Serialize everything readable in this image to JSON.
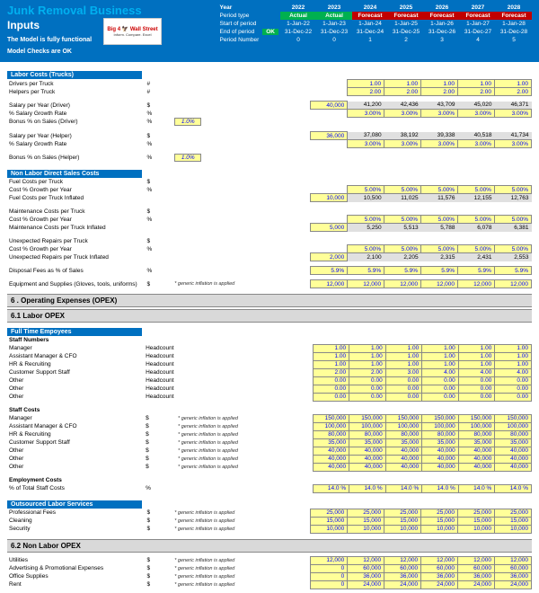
{
  "header": {
    "title": "Junk Removal Business",
    "inputs": "Inputs",
    "note1": "The Model is fully functional",
    "note2": "Model Checks are OK",
    "logo": "Big 4 🦅 Wall Street",
    "logo_sub": "Inform. Compare. Excel",
    "ok": "OK",
    "period_labels": [
      "Year",
      "Period type",
      "Start of period",
      "End of period",
      "Period Number"
    ],
    "years": [
      "2022",
      "2023",
      "2024",
      "2025",
      "2026",
      "2027",
      "2028"
    ],
    "ptypes": [
      "Actual",
      "Actual",
      "Forecast",
      "Forecast",
      "Forecast",
      "Forecast",
      "Forecast"
    ],
    "starts": [
      "1-Jan-22",
      "1-Jan-23",
      "1-Jan-24",
      "1-Jan-25",
      "1-Jan-26",
      "1-Jan-27",
      "1-Jan-28"
    ],
    "ends": [
      "31-Dec-22",
      "31-Dec-23",
      "31-Dec-24",
      "31-Dec-25",
      "31-Dec-26",
      "31-Dec-27",
      "31-Dec-28"
    ],
    "pnums": [
      "0",
      "0",
      "1",
      "2",
      "3",
      "4",
      "5"
    ]
  },
  "s1": {
    "title": "Labor Costs (Trucks)"
  },
  "r": {
    "drivers": {
      "l": "Drivers per Truck",
      "u": "#",
      "v": [
        "1.00",
        "1.00",
        "1.00",
        "1.00",
        "1.00"
      ]
    },
    "helpers": {
      "l": "Helpers per Truck",
      "u": "#",
      "v": [
        "2.00",
        "2.00",
        "2.00",
        "2.00",
        "2.00"
      ]
    },
    "salDriver": {
      "l": "Salary per Year (Driver)",
      "u": "$",
      "base": "40,000",
      "v": [
        "41,200",
        "42,436",
        "43,709",
        "45,020",
        "46,371"
      ]
    },
    "salDrGrow": {
      "l": "% Salary Growth Rate",
      "u": "%",
      "v": [
        "3.00%",
        "3.00%",
        "3.00%",
        "3.00%",
        "3.00%"
      ]
    },
    "bonusDr": {
      "l": "Bonus % on Sales (Driver)",
      "u": "%",
      "pct": "1.0%"
    },
    "salHelper": {
      "l": "Salary per Year (Helper)",
      "u": "$",
      "base": "36,000",
      "v": [
        "37,080",
        "38,192",
        "39,338",
        "40,518",
        "41,734"
      ]
    },
    "salHeGrow": {
      "l": "% Salary Growth Rate",
      "u": "%",
      "v": [
        "3.00%",
        "3.00%",
        "3.00%",
        "3.00%",
        "3.00%"
      ]
    },
    "bonusHe": {
      "l": "Bonus % on Sales (Helper)",
      "u": "%",
      "pct": "1.0%"
    }
  },
  "s2": {
    "title": "Non Labor Direct Sales Costs"
  },
  "r2": {
    "fuel": {
      "l": "Fuel Costs per Truck",
      "u": "$"
    },
    "fuelGrow": {
      "l": "Cost % Growth per Year",
      "u": "%",
      "v": [
        "5.00%",
        "5.00%",
        "5.00%",
        "5.00%",
        "5.00%"
      ]
    },
    "fuelInfl": {
      "l": "Fuel Costs per Truck Inflated",
      "u": "",
      "base": "10,000",
      "v": [
        "10,500",
        "11,025",
        "11,576",
        "12,155",
        "12,763"
      ]
    },
    "maint": {
      "l": "Maintenance Costs per Truck",
      "u": "$"
    },
    "maintGrow": {
      "l": "Cost % Growth per Year",
      "u": "%",
      "v": [
        "5.00%",
        "5.00%",
        "5.00%",
        "5.00%",
        "5.00%"
      ]
    },
    "maintInfl": {
      "l": "Maintenance Costs per Truck Inflated",
      "u": "",
      "base": "5,000",
      "v": [
        "5,250",
        "5,513",
        "5,788",
        "6,078",
        "6,381"
      ]
    },
    "unexp": {
      "l": "Unexpected Repairs per Truck",
      "u": "$"
    },
    "unexpGrow": {
      "l": "Cost % Growth per Year",
      "u": "%",
      "v": [
        "5.00%",
        "5.00%",
        "5.00%",
        "5.00%",
        "5.00%"
      ]
    },
    "unexpInfl": {
      "l": "Unexpected Repairs per Truck Inflated",
      "u": "",
      "base": "2,000",
      "v": [
        "2,100",
        "2,205",
        "2,315",
        "2,431",
        "2,553"
      ]
    },
    "disposal": {
      "l": "Disposal Fees as % of Sales",
      "u": "%",
      "v": [
        "5.9%",
        "5.9%",
        "5.9%",
        "5.9%",
        "5.9%",
        "5.9%"
      ]
    },
    "equip": {
      "l": "Equipment and Supplies (Gloves, tools, uniforms)",
      "u": "$",
      "n": "* generic inflation is applied",
      "v": [
        "12,000",
        "12,000",
        "12,000",
        "12,000",
        "12,000",
        "12,000"
      ]
    }
  },
  "band6": {
    "t": "6 .  Operating Expenses (OPEX)"
  },
  "band61": {
    "t": "6.1  Labor OPEX"
  },
  "s3": {
    "title": "Full Time Empoyees"
  },
  "r3": {
    "sn": {
      "l": "Staff Numbers"
    },
    "mgr": {
      "l": "Manager",
      "u": "Headcount",
      "v": [
        "1.00",
        "1.00",
        "1.00",
        "1.00",
        "1.00",
        "1.00"
      ]
    },
    "amgr": {
      "l": "Assistant Manager & CFO",
      "u": "Headcount",
      "v": [
        "1.00",
        "1.00",
        "1.00",
        "1.00",
        "1.00",
        "1.00"
      ]
    },
    "hr": {
      "l": "HR & Recruiting",
      "u": "Headcount",
      "v": [
        "1.00",
        "1.00",
        "1.00",
        "1.00",
        "1.00",
        "1.00"
      ]
    },
    "css": {
      "l": "Customer Support Staff",
      "u": "Headcount",
      "v": [
        "2.00",
        "2.00",
        "3.00",
        "4.00",
        "4.00",
        "4.00"
      ]
    },
    "oth1": {
      "l": "Other",
      "u": "Headcount",
      "v": [
        "0.00",
        "0.00",
        "0.00",
        "0.00",
        "0.00",
        "0.00"
      ]
    },
    "oth2": {
      "l": "Other",
      "u": "Headcount",
      "v": [
        "0.00",
        "0.00",
        "0.00",
        "0.00",
        "0.00",
        "0.00"
      ]
    },
    "oth3": {
      "l": "Other",
      "u": "Headcount",
      "v": [
        "0.00",
        "0.00",
        "0.00",
        "0.00",
        "0.00",
        "0.00"
      ]
    },
    "sc": {
      "l": "Staff Costs"
    },
    "mgrC": {
      "l": "Manager",
      "u": "$",
      "n": "* generic inflation is applied",
      "v": [
        "150,000",
        "150,000",
        "150,000",
        "150,000",
        "150,000",
        "150,000"
      ]
    },
    "amgrC": {
      "l": "Assistant Manager & CFO",
      "u": "$",
      "n": "* generic inflation is applied",
      "v": [
        "100,000",
        "100,000",
        "100,000",
        "100,000",
        "100,000",
        "100,000"
      ]
    },
    "hrC": {
      "l": "HR & Recruiting",
      "u": "$",
      "n": "* generic inflation is applied",
      "v": [
        "80,000",
        "80,000",
        "80,000",
        "80,000",
        "80,000",
        "80,000"
      ]
    },
    "cssC": {
      "l": "Customer Support Staff",
      "u": "$",
      "n": "* generic inflation is applied",
      "v": [
        "35,000",
        "35,000",
        "35,000",
        "35,000",
        "35,000",
        "35,000"
      ]
    },
    "o1C": {
      "l": "Other",
      "u": "$",
      "n": "* generic inflation is applied",
      "v": [
        "40,000",
        "40,000",
        "40,000",
        "40,000",
        "40,000",
        "40,000"
      ]
    },
    "o2C": {
      "l": "Other",
      "u": "$",
      "n": "* generic inflation is applied",
      "v": [
        "40,000",
        "40,000",
        "40,000",
        "40,000",
        "40,000",
        "40,000"
      ]
    },
    "o3C": {
      "l": "Other",
      "u": "$",
      "n": "* generic inflation is applied",
      "v": [
        "40,000",
        "40,000",
        "40,000",
        "40,000",
        "40,000",
        "40,000"
      ]
    },
    "emp": {
      "l": "Employment Costs"
    },
    "pct": {
      "l": "% of Total Staff Costs",
      "u": "%",
      "v": [
        "14.0 %",
        "14.0 %",
        "14.0 %",
        "14.0 %",
        "14.0 %",
        "14.0 %"
      ]
    }
  },
  "s4": {
    "title": "Outsourced Labor Services"
  },
  "r4": {
    "prof": {
      "l": "Professional Fees",
      "u": "$",
      "n": "* generic inflation is applied",
      "v": [
        "25,000",
        "25,000",
        "25,000",
        "25,000",
        "25,000",
        "25,000"
      ]
    },
    "clean": {
      "l": "Cleaning",
      "u": "$",
      "n": "* generic inflation is applied",
      "v": [
        "15,000",
        "15,000",
        "15,000",
        "15,000",
        "15,000",
        "15,000"
      ]
    },
    "sec": {
      "l": "Security",
      "u": "$",
      "n": "* generic inflation is applied",
      "v": [
        "10,000",
        "10,000",
        "10,000",
        "10,000",
        "10,000",
        "10,000"
      ]
    }
  },
  "band62": {
    "t": "6.2  Non Labor OPEX"
  },
  "r5": {
    "util": {
      "l": "Utilities",
      "u": "$",
      "n": "* generic inflation is applied",
      "v": [
        "12,000",
        "12,000",
        "12,000",
        "12,000",
        "12,000",
        "12,000"
      ]
    },
    "adv": {
      "l": "Advertising & Promotional Expenses",
      "u": "$",
      "n": "* generic inflation is applied",
      "v": [
        "0",
        "60,000",
        "60,000",
        "60,000",
        "60,000",
        "60,000"
      ]
    },
    "off": {
      "l": "Office Supplies",
      "u": "$",
      "n": "* generic inflation is applied",
      "v": [
        "0",
        "36,000",
        "36,000",
        "36,000",
        "36,000",
        "36,000"
      ]
    },
    "rent": {
      "l": "Rent",
      "u": "$",
      "n": "* generic inflation is applied",
      "v": [
        "0",
        "24,000",
        "24,000",
        "24,000",
        "24,000",
        "24,000"
      ]
    }
  }
}
